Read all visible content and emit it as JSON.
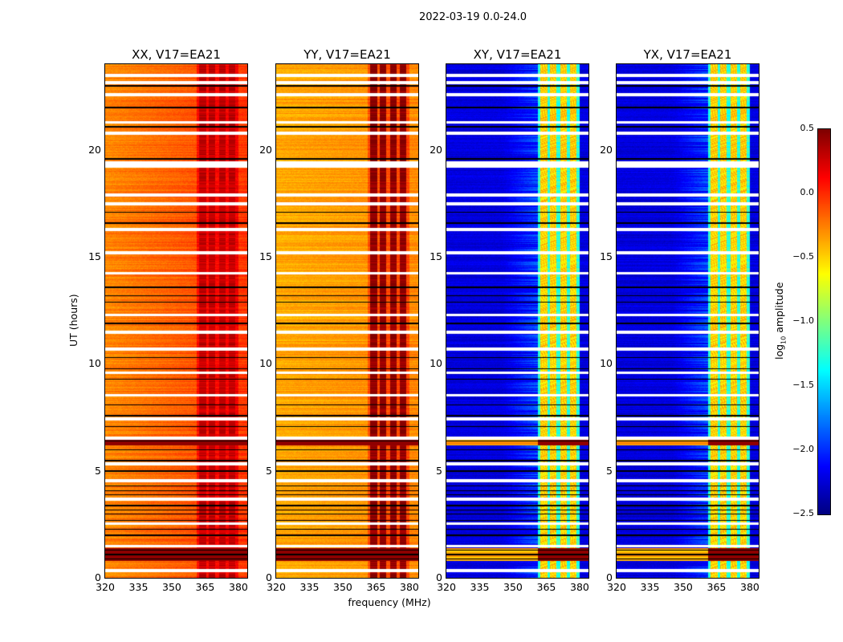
{
  "chart_data": {
    "type": "heatmap",
    "title": "2022-03-19 0.0-24.0",
    "xlabel": "frequency (MHz)",
    "ylabel": "UT (hours)",
    "xlim": [
      320,
      384
    ],
    "ylim": [
      0,
      24
    ],
    "xticks": [
      "320",
      "335",
      "350",
      "365",
      "380"
    ],
    "xtick_values": [
      320,
      335,
      350,
      365,
      380
    ],
    "yticks": [
      "0",
      "5",
      "10",
      "15",
      "20"
    ],
    "ytick_values": [
      0,
      5,
      10,
      15,
      20
    ],
    "colorbar": {
      "label": "log10 amplitude",
      "label_main": "log",
      "label_sub": "10",
      "label_tail": " amplitude",
      "range": [
        -2.5,
        0.5
      ],
      "ticks": [
        "0.5",
        "0.0",
        "−0.5",
        "−1.0",
        "−1.5",
        "−2.0",
        "−2.5"
      ],
      "tick_values": [
        0.5,
        0.0,
        -0.5,
        -1.0,
        -1.5,
        -2.0,
        -2.5
      ],
      "colormap": "jet"
    },
    "panels": [
      {
        "title": "XX, V17=EA21",
        "base_level": -0.35,
        "rfi_level": 0.2,
        "rise": 0.25
      },
      {
        "title": "YY, V17=EA21",
        "base_level": -0.45,
        "rfi_level": 0.35,
        "rise": 0.1
      },
      {
        "title": "XY, V17=EA21",
        "base_level": -2.3,
        "rfi_level": -0.7,
        "rise": 0.0
      },
      {
        "title": "YX, V17=EA21",
        "base_level": -2.3,
        "rfi_level": -0.7,
        "rise": 0.0
      }
    ],
    "rfi_channels_MHz": [
      [
        362,
        365.5
      ],
      [
        366.5,
        369.5
      ],
      [
        371,
        374
      ],
      [
        375.5,
        378.5
      ]
    ],
    "flagged_hours_white": [
      0.35,
      1.5,
      2.55,
      3.7,
      4.55,
      5.35,
      6.55,
      7.45,
      8.55,
      9.6,
      10.7,
      11.5,
      12.3,
      14.25,
      15.2,
      16.3,
      17.5,
      17.9,
      19.25,
      19.4,
      20.8,
      21.3,
      22.6,
      23.15,
      23.5
    ],
    "flagged_hours_black": [
      0.9,
      1.1,
      1.3,
      2.0,
      2.3,
      2.7,
      3.0,
      3.2,
      3.4,
      3.9,
      4.1,
      4.3,
      5.0,
      5.5,
      6.0,
      6.4,
      7.1,
      7.6,
      8.1,
      9.3,
      9.8,
      10.3,
      11.9,
      12.9,
      13.2,
      13.6,
      16.6,
      17.1,
      19.6,
      21.1,
      22.0,
      23.0
    ],
    "strong_rfi_hours": [
      [
        0.8,
        1.4
      ],
      [
        6.2,
        6.5
      ]
    ]
  }
}
